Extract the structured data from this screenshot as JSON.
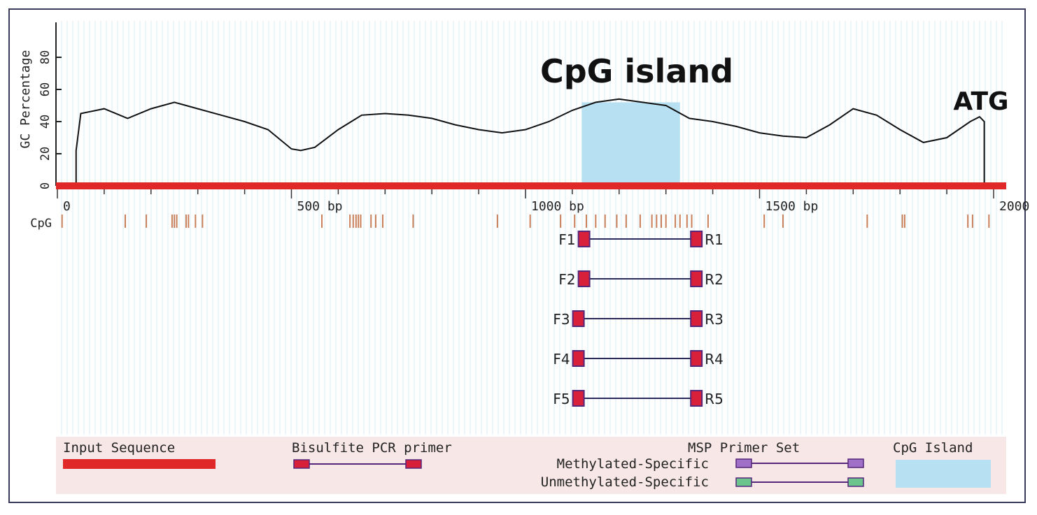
{
  "chart_data": {
    "type": "line",
    "ylabel": "GC Percentage",
    "ylim": [
      0,
      100
    ],
    "yticks": [
      "0",
      "20",
      "40",
      "60",
      "80"
    ],
    "x_axis_labels": [
      "0",
      "500 bp",
      "1000 bp",
      "1500 bp",
      "2000 b"
    ],
    "x_range": [
      0,
      2000
    ],
    "annotations": {
      "cpg_island_title": "CpG island",
      "atg": "ATG"
    },
    "cpg_island": {
      "start": 1120,
      "end": 1330
    },
    "gc_profile": {
      "x": [
        40,
        50,
        100,
        150,
        200,
        250,
        300,
        350,
        400,
        450,
        500,
        520,
        550,
        600,
        650,
        700,
        750,
        800,
        850,
        900,
        950,
        1000,
        1050,
        1100,
        1150,
        1200,
        1250,
        1300,
        1350,
        1400,
        1450,
        1500,
        1550,
        1600,
        1650,
        1700,
        1750,
        1800,
        1850,
        1900,
        1950,
        1970,
        1980
      ],
      "y": [
        22,
        45,
        48,
        42,
        48,
        52,
        48,
        44,
        40,
        35,
        23,
        22,
        24,
        35,
        44,
        45,
        44,
        42,
        38,
        35,
        33,
        35,
        40,
        47,
        52,
        54,
        52,
        50,
        42,
        40,
        37,
        33,
        31,
        30,
        38,
        48,
        44,
        35,
        27,
        30,
        40,
        43,
        40
      ]
    },
    "cpg_label": "CpG",
    "cpg_sites": [
      10,
      145,
      190,
      245,
      250,
      255,
      275,
      280,
      295,
      310,
      565,
      625,
      632,
      638,
      643,
      648,
      670,
      680,
      695,
      760,
      940,
      1010,
      1075,
      1105,
      1130,
      1150,
      1170,
      1195,
      1215,
      1245,
      1270,
      1280,
      1290,
      1300,
      1320,
      1330,
      1345,
      1355,
      1390,
      1510,
      1550,
      1730,
      1805,
      1810,
      1945,
      1955,
      1990
    ],
    "primers": [
      {
        "forward": "F1",
        "reverse": "R1",
        "start": 1125,
        "end": 1365
      },
      {
        "forward": "F2",
        "reverse": "R2",
        "start": 1125,
        "end": 1365
      },
      {
        "forward": "F3",
        "reverse": "R3",
        "start": 1113,
        "end": 1365
      },
      {
        "forward": "F4",
        "reverse": "R4",
        "start": 1113,
        "end": 1365
      },
      {
        "forward": "F5",
        "reverse": "R5",
        "start": 1113,
        "end": 1365
      }
    ]
  },
  "legend": {
    "input_sequence": "Input Sequence",
    "bisulfite_primer": "Bisulfite PCR primer",
    "msp_primer_set": "MSP Primer Set",
    "methylated_specific": "Methylated-Specific",
    "unmethylated_specific": "Unmethylated-Specific",
    "cpg_island": "CpG Island"
  },
  "colors": {
    "sequence_bar": "#e02828",
    "gc_line": "#111111",
    "cpg_island_fill": "#b7e1f2",
    "cpg_site": "#c9805a",
    "primer_box": "#d8203a",
    "primer_border": "#55267a",
    "primer_link": "#2a2a5a",
    "methylated": "#a070c8",
    "unmethylated": "#6cc58c",
    "grid_stripe": "#d7ecf6",
    "legend_bg": "#f7e7e7"
  }
}
